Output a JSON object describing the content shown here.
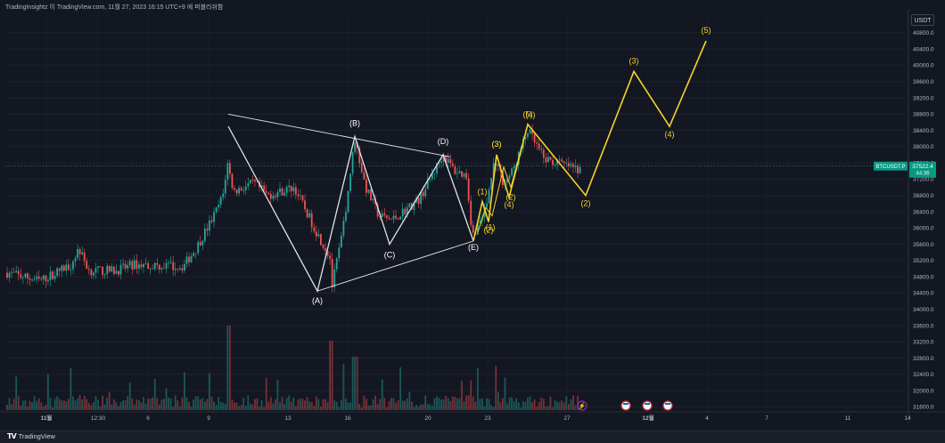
{
  "header": {
    "title": "TradingInsightz 이 TradingView.com, 11월 27, 2023 16:15 UTC+9 에 퍼블리쉬함"
  },
  "footer": {
    "brand": "TradingView"
  },
  "currency_button": {
    "label": "USDT"
  },
  "chart_data": {
    "type": "candlestick",
    "symbol_badge": "BTCUSDT.P",
    "current_price": "37522.4",
    "countdown": "44:36",
    "y_ticks": [
      31600,
      32000,
      32400,
      32800,
      33200,
      33600,
      34000,
      34400,
      34800,
      35200,
      35600,
      36000,
      36400,
      36800,
      37200,
      37600,
      38000,
      38400,
      38800,
      39200,
      39600,
      40000,
      40400,
      40800
    ],
    "y_range": [
      31500,
      41300
    ],
    "x_ticks": [
      {
        "label": "11월",
        "bold": true
      },
      {
        "label": "12:30"
      },
      {
        "label": "6"
      },
      {
        "label": "9"
      },
      {
        "label": "13"
      },
      {
        "label": "16"
      },
      {
        "label": "20"
      },
      {
        "label": "23"
      },
      {
        "label": "27"
      },
      {
        "label": "12월",
        "bold": true
      },
      {
        "label": "4"
      },
      {
        "label": "7"
      },
      {
        "label": "11"
      },
      {
        "label": "14"
      }
    ],
    "abcde_wave": [
      {
        "label": "",
        "price": 38500
      },
      {
        "label": "(A)",
        "price": 34450
      },
      {
        "label": "(B)",
        "price": 38250
      },
      {
        "label": "(C)",
        "price": 35600
      },
      {
        "label": "(D)",
        "price": 37800
      },
      {
        "label": "(E)",
        "price": 35680
      }
    ],
    "impulse_wave": [
      {
        "label": "(1)",
        "price": 36650
      },
      {
        "label": "(2)",
        "price": 36150
      },
      {
        "label": "(3)",
        "price": 37800
      },
      {
        "label": "(4)",
        "price": 36750
      },
      {
        "label": "(5)",
        "price": 38550
      },
      {
        "label": "(2)",
        "price": 36800
      },
      {
        "label": "(3)",
        "price": 39850
      },
      {
        "label": "(4)",
        "price": 38500
      },
      {
        "label": "(5)",
        "price": 40600
      }
    ],
    "extra_labels": [
      {
        "label": "(1)"
      },
      {
        "label": "(2)"
      },
      {
        "label": "(3)"
      },
      {
        "label": "(4)"
      }
    ]
  },
  "colors": {
    "background": "#131722",
    "up": "#26a69a",
    "down": "#ef5350",
    "wave_white": "#e0e3eb",
    "wave_yellow": "#f5d327",
    "price_badge": "#089981"
  },
  "icons": [
    "lightning-icon",
    "us-flag-icon"
  ]
}
